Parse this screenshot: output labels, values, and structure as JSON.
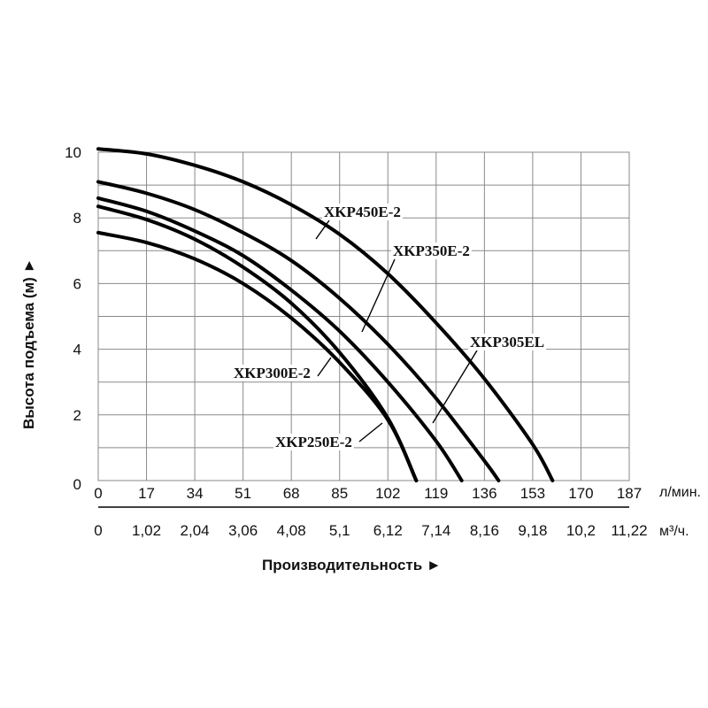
{
  "chart_data": {
    "type": "line",
    "title": "",
    "xlabel": "Производительность ►",
    "ylabel": "Высота подъема (м) ►",
    "x_unit_primary": "л/мин.",
    "x_unit_secondary": "м³/ч.",
    "x_ticks_primary": [
      "0",
      "17",
      "34",
      "51",
      "68",
      "85",
      "102",
      "119",
      "136",
      "153",
      "170",
      "187"
    ],
    "x_ticks_secondary": [
      "0",
      "1,02",
      "2,04",
      "3,06",
      "4,08",
      "5,1",
      "6,12",
      "7,14",
      "8,16",
      "9,18",
      "10,2",
      "11,22"
    ],
    "y_ticks": [
      "0",
      "2",
      "4",
      "6",
      "8",
      "10"
    ],
    "xlim": [
      0,
      187
    ],
    "ylim": [
      0,
      10
    ],
    "grid": true,
    "legend": "inline labels",
    "series": [
      {
        "name": "XKP450E-2",
        "x": [
          0,
          17,
          34,
          51,
          68,
          85,
          102,
          119,
          136,
          153,
          160
        ],
        "y": [
          10.1,
          9.95,
          9.6,
          9.1,
          8.4,
          7.5,
          6.3,
          4.8,
          3.1,
          1.1,
          0.0
        ]
      },
      {
        "name": "XKP350E-2",
        "x": [
          0,
          17,
          34,
          51,
          68,
          85,
          102,
          119,
          136,
          141
        ],
        "y": [
          9.1,
          8.75,
          8.25,
          7.55,
          6.7,
          5.55,
          4.15,
          2.5,
          0.6,
          0.0
        ]
      },
      {
        "name": "XKP305EL",
        "x": [
          0,
          17,
          34,
          51,
          68,
          85,
          102,
          119,
          128
        ],
        "y": [
          8.6,
          8.2,
          7.6,
          6.85,
          5.8,
          4.55,
          3.0,
          1.2,
          0.0
        ]
      },
      {
        "name": "XKP300E-2",
        "x": [
          0,
          17,
          34,
          51,
          68,
          85,
          102,
          112
        ],
        "y": [
          8.35,
          7.95,
          7.35,
          6.5,
          5.4,
          3.9,
          1.9,
          0.0
        ]
      },
      {
        "name": "XKP250E-2",
        "x": [
          0,
          17,
          34,
          51,
          68,
          85,
          102,
          112
        ],
        "y": [
          7.55,
          7.25,
          6.75,
          6.0,
          4.95,
          3.6,
          1.85,
          0.0
        ]
      }
    ]
  }
}
